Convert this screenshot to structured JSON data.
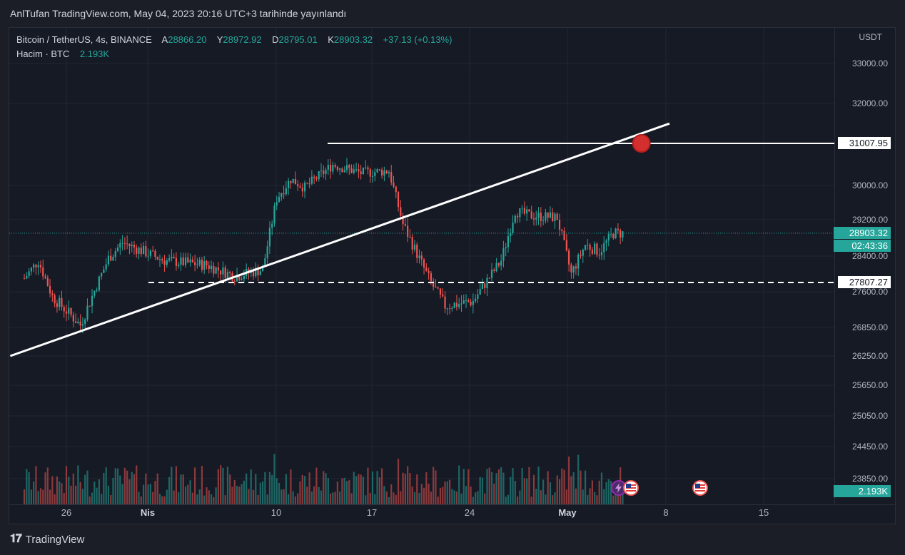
{
  "header": {
    "published": "AnlTufan TradingView.com, May 04, 2023 20:16 UTC+3 tarihinde yayınlandı"
  },
  "legend": {
    "symbol": "Bitcoin / TetherUS, 4s, BINANCE",
    "open_label": "A",
    "open": "28866.20",
    "high_label": "Y",
    "high": "28972.92",
    "low_label": "D",
    "low": "28795.01",
    "close_label": "K",
    "close": "28903.32",
    "change": "+37.13 (+0.13%)",
    "volume_label": "Hacim · BTC",
    "volume": "2.193K"
  },
  "axis": {
    "currency": "USDT",
    "price_ticks": [
      "33000.00",
      "32000.00",
      "30000.00",
      "29200.00",
      "28400.00",
      "27600.00",
      "26850.00",
      "26250.00",
      "25650.00",
      "25050.00",
      "24450.00",
      "23850.00"
    ],
    "time_ticks": [
      {
        "label": "26",
        "bold": false
      },
      {
        "label": "Nis",
        "bold": true
      },
      {
        "label": "10",
        "bold": false
      },
      {
        "label": "17",
        "bold": false
      },
      {
        "label": "24",
        "bold": false
      },
      {
        "label": "May",
        "bold": true
      },
      {
        "label": "8",
        "bold": false
      },
      {
        "label": "15",
        "bold": false
      }
    ]
  },
  "tags": {
    "resistance": "31007.95",
    "last_price": "28903.32",
    "countdown": "02:43:36",
    "support": "27807.27",
    "volume": "2.193K"
  },
  "footer": {
    "logo": "𝟏𝟕",
    "brand": "TradingView"
  },
  "colors": {
    "up": "#26a69a",
    "down": "#ef5350",
    "background": "#161a25",
    "grid": "#232632",
    "marker": "#d32f2f"
  },
  "chart_data": {
    "type": "candlestick",
    "title": "Bitcoin / TetherUS, 4s, BINANCE",
    "x_axis": "date (Mar 23 – May 4, 2023), 4-hour candles",
    "y_axis": "USDT",
    "ylim": [
      23850,
      33000
    ],
    "key_closes": [
      {
        "date": "2023-03-23",
        "close": 27900
      },
      {
        "date": "2023-03-24",
        "close": 28300
      },
      {
        "date": "2023-03-25",
        "close": 27500
      },
      {
        "date": "2023-03-27",
        "close": 26900
      },
      {
        "date": "2023-03-29",
        "close": 28350
      },
      {
        "date": "2023-03-30",
        "close": 28700
      },
      {
        "date": "2023-04-02",
        "close": 28300
      },
      {
        "date": "2023-04-05",
        "close": 28200
      },
      {
        "date": "2023-04-07",
        "close": 27950
      },
      {
        "date": "2023-04-09",
        "close": 28100
      },
      {
        "date": "2023-04-10",
        "close": 29700
      },
      {
        "date": "2023-04-11",
        "close": 30150
      },
      {
        "date": "2023-04-12",
        "close": 29950
      },
      {
        "date": "2023-04-14",
        "close": 30500
      },
      {
        "date": "2023-04-16",
        "close": 30300
      },
      {
        "date": "2023-04-18",
        "close": 30350
      },
      {
        "date": "2023-04-19",
        "close": 29100
      },
      {
        "date": "2023-04-21",
        "close": 27800
      },
      {
        "date": "2023-04-22",
        "close": 27300
      },
      {
        "date": "2023-04-24",
        "close": 27400
      },
      {
        "date": "2023-04-26",
        "close": 28300
      },
      {
        "date": "2023-04-27",
        "close": 29400
      },
      {
        "date": "2023-04-28",
        "close": 29300
      },
      {
        "date": "2023-04-30",
        "close": 29250
      },
      {
        "date": "2023-05-01",
        "close": 28000
      },
      {
        "date": "2023-05-02",
        "close": 28650
      },
      {
        "date": "2023-05-03",
        "close": 28500
      },
      {
        "date": "2023-05-04",
        "close": 28903.32
      }
    ],
    "horizontal_lines": [
      {
        "price": 31007.95,
        "style": "solid"
      },
      {
        "price": 27807.27,
        "style": "dashed"
      }
    ],
    "trendline": {
      "start": {
        "date": "2023-03-22",
        "price": 26250
      },
      "end": {
        "date": "2023-05-08",
        "price": 31500
      }
    },
    "marker": {
      "date": "2023-05-06",
      "price": 31007.95
    }
  }
}
